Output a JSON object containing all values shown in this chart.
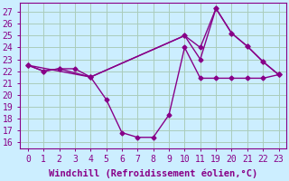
{
  "background_color": "#cceeff",
  "line_color": "#880088",
  "grid_color": "#aaccbb",
  "xlabel": "Windchill (Refroidissement éolien,°C)",
  "ylim": [
    15.5,
    27.8
  ],
  "yticks": [
    16,
    17,
    18,
    19,
    20,
    21,
    22,
    23,
    24,
    25,
    26,
    27
  ],
  "xtick_labels": [
    "0",
    "1",
    "2",
    "3",
    "4",
    "5",
    "6",
    "7",
    "8",
    "9",
    "10",
    "11",
    "19",
    "20",
    "21",
    "22",
    "23"
  ],
  "xtick_pos": [
    0,
    1,
    2,
    3,
    4,
    5,
    6,
    7,
    8,
    9,
    10,
    11,
    12,
    13,
    14,
    15,
    16
  ],
  "xlim": [
    -0.5,
    16.5
  ],
  "line1_pos": [
    0,
    1,
    2,
    3,
    4,
    5,
    6,
    7,
    8,
    9,
    10,
    11,
    12,
    13,
    14,
    15,
    16
  ],
  "line1_y": [
    22.5,
    22.0,
    22.2,
    22.2,
    21.5,
    19.6,
    16.8,
    16.4,
    16.4,
    18.3,
    24.0,
    21.4,
    21.4,
    21.4,
    21.4,
    21.4,
    21.7
  ],
  "line2_pos": [
    0,
    1,
    2,
    4,
    10,
    11,
    12,
    13,
    14,
    15,
    16
  ],
  "line2_y": [
    22.5,
    22.0,
    22.2,
    21.5,
    25.0,
    24.0,
    27.3,
    25.2,
    24.1,
    22.8,
    21.7
  ],
  "line3_pos": [
    0,
    4,
    10,
    11,
    12,
    13,
    14,
    15,
    16
  ],
  "line3_y": [
    22.5,
    21.5,
    25.0,
    23.0,
    27.3,
    25.2,
    24.1,
    22.8,
    21.7
  ],
  "marker": "D",
  "markersize": 2.5,
  "linewidth": 1.0,
  "font_family": "monospace",
  "xlabel_fontsize": 7.5,
  "tick_fontsize": 7
}
